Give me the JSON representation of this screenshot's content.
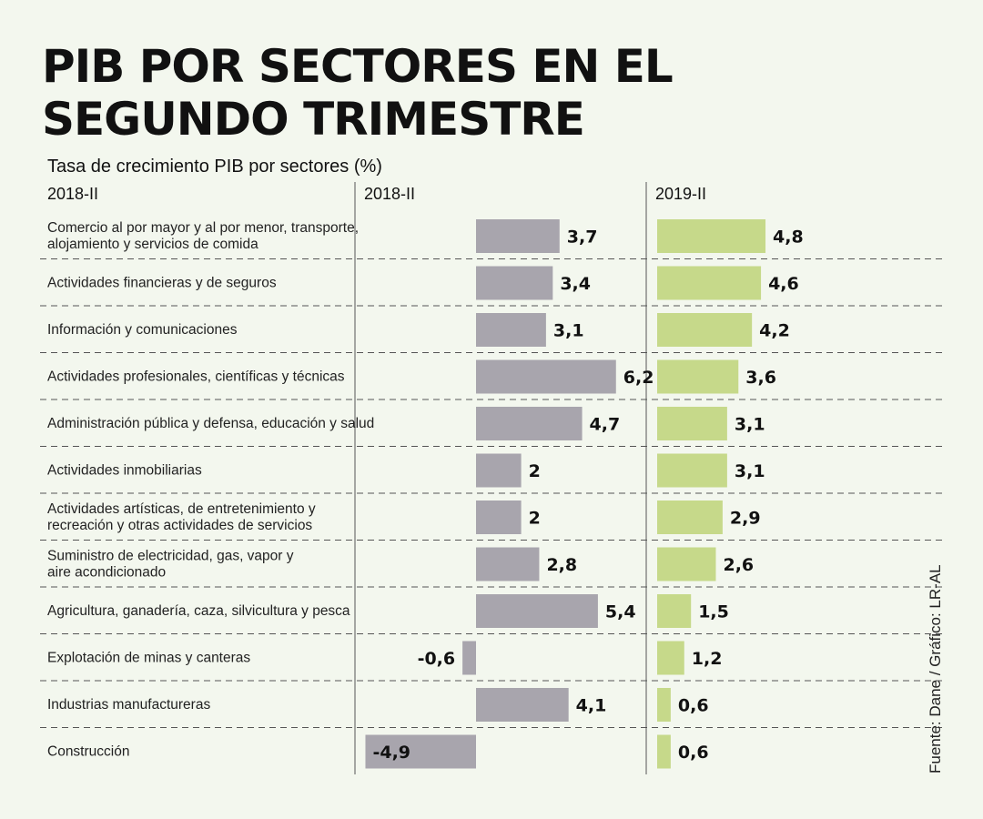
{
  "header": {
    "title_line1": "PIB POR SECTORES EN EL",
    "title_line2": "SEGUNDO TRIMESTRE",
    "subtitle": "Tasa de crecimiento PIB por sectores (%)",
    "left_column_label": "2018-II",
    "source": "Fuente: Dane / Gráfico: LR-AL"
  },
  "colors": {
    "series_2018": "#a8a5ad",
    "series_2019": "#c6d98a",
    "separator": "#555555"
  },
  "chart_data": {
    "type": "bar",
    "orientation": "horizontal",
    "title": "PIB POR SECTORES EN EL SEGUNDO TRIMESTRE",
    "subtitle": "Tasa de crecimiento PIB por sectores (%)",
    "unit": "%",
    "categories": [
      [
        "Comercio al por mayor y al por menor, transporte,",
        "alojamiento y servicios de comida"
      ],
      [
        "Actividades financieras y de seguros"
      ],
      [
        "Información y comunicaciones"
      ],
      [
        "Actividades profesionales, científicas y técnicas"
      ],
      [
        "Administración pública y defensa, educación y salud"
      ],
      [
        "Actividades inmobiliarias"
      ],
      [
        "Actividades artísticas, de entretenimiento y",
        "recreación y otras actividades de servicios"
      ],
      [
        "Suministro de electricidad, gas, vapor y",
        "aire acondicionado"
      ],
      [
        "Agricultura, ganadería, caza, silvicultura y pesca"
      ],
      [
        "Explotación de minas y canteras"
      ],
      [
        "Industrias manufactureras"
      ],
      [
        "Construcción"
      ]
    ],
    "series": [
      {
        "name": "2018-II",
        "values": [
          3.7,
          3.4,
          3.1,
          6.2,
          4.7,
          2,
          2,
          2.8,
          5.4,
          -0.6,
          4.1,
          -4.9
        ],
        "labels": [
          "3,7",
          "3,4",
          "3,1",
          "6,2",
          "4,7",
          "2",
          "2",
          "2,8",
          "5,4",
          "-0,6",
          "4,1",
          "-4,9"
        ]
      },
      {
        "name": "2019-II",
        "values": [
          4.8,
          4.6,
          4.2,
          3.6,
          3.1,
          3.1,
          2.9,
          2.6,
          1.5,
          1.2,
          0.6,
          0.6
        ],
        "labels": [
          "4,8",
          "4,6",
          "4,2",
          "3,6",
          "3,1",
          "3,1",
          "2,9",
          "2,6",
          "1,5",
          "1,2",
          "0,6",
          "0,6"
        ]
      }
    ]
  }
}
